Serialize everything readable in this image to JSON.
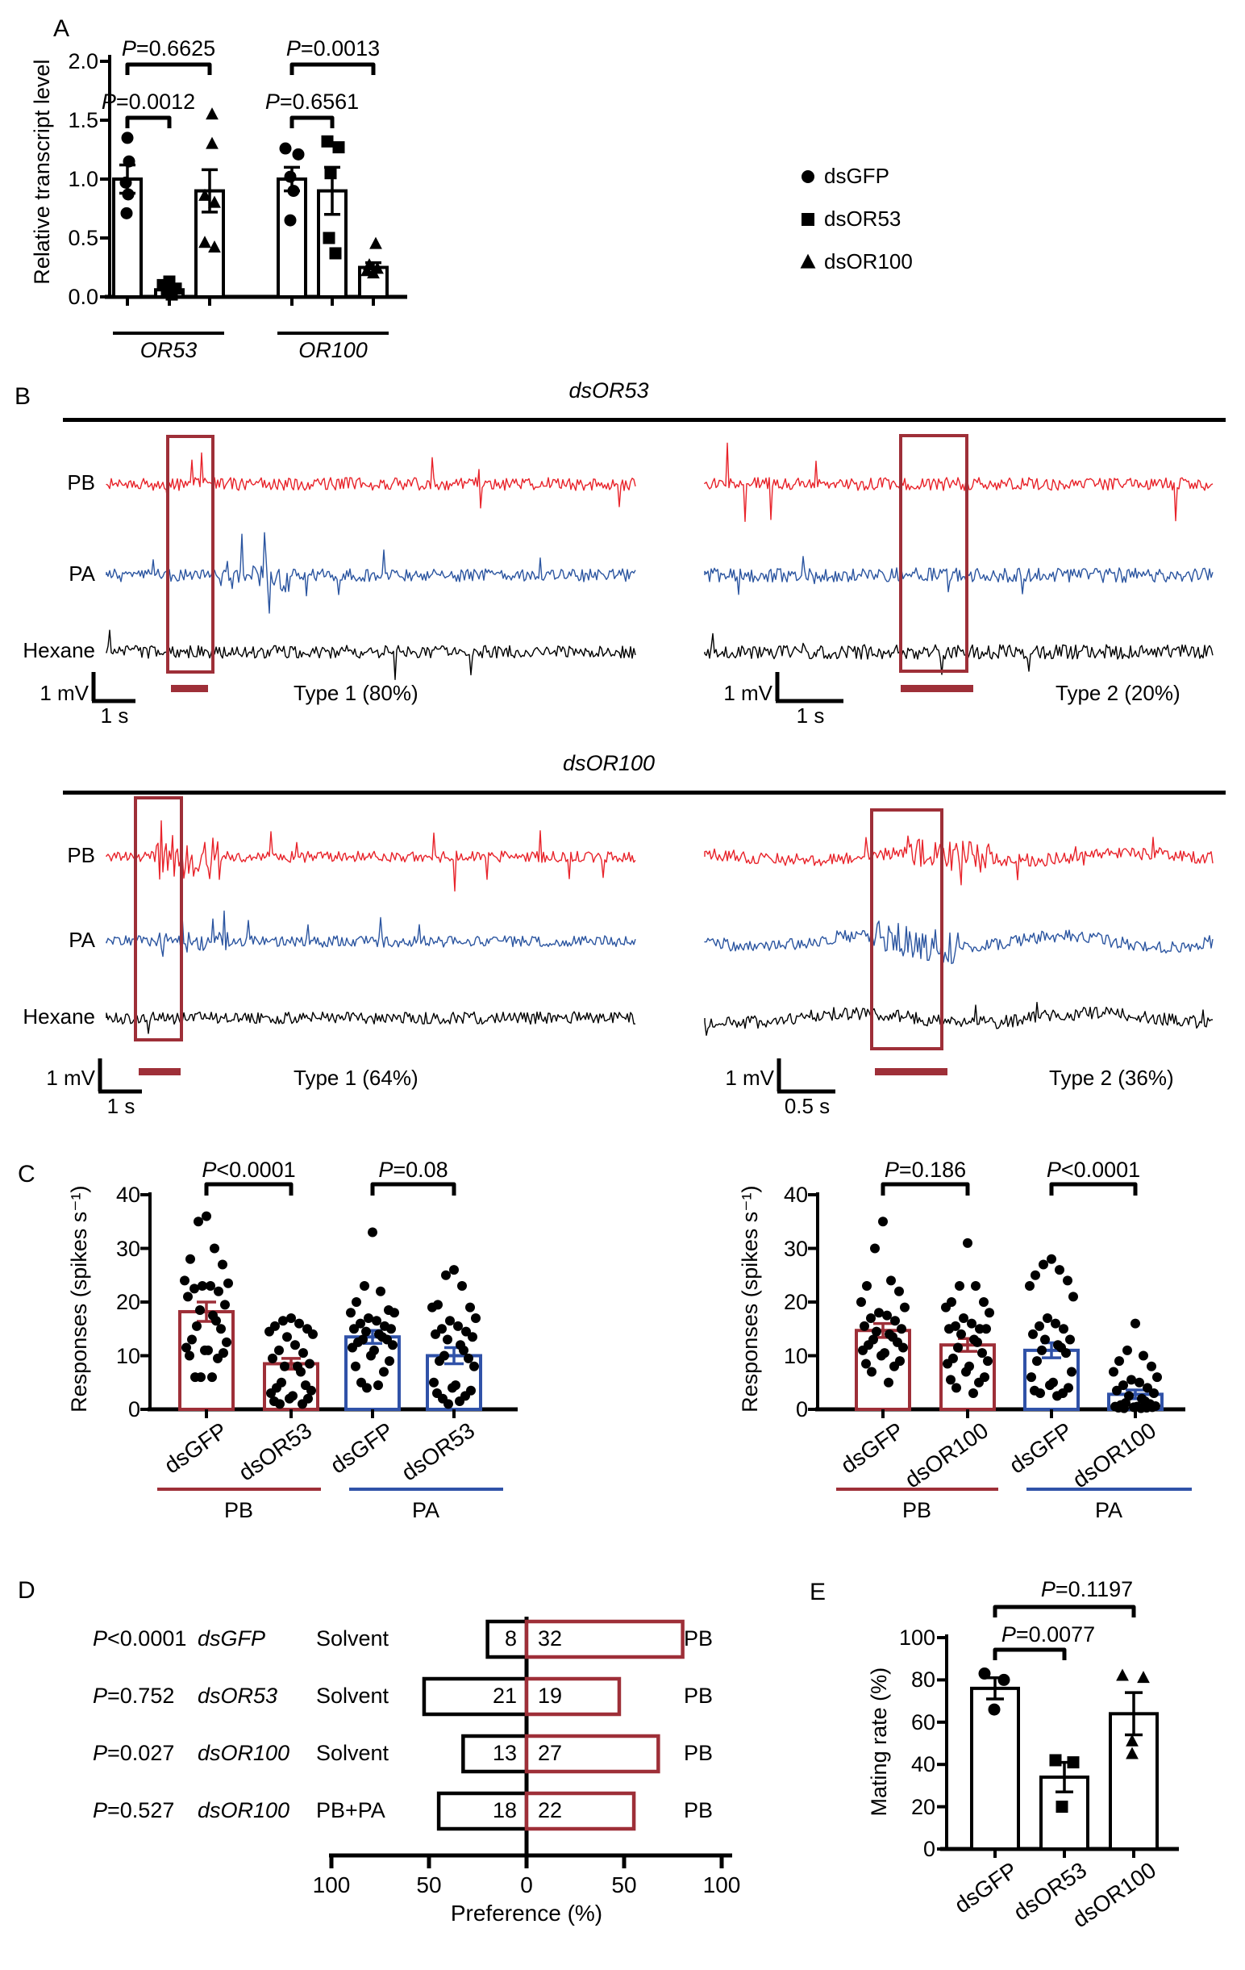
{
  "colors": {
    "trace_red": "#e8232a",
    "trace_blue": "#2b55a0",
    "trace_black": "#000000",
    "dark_red": "#9e2f38",
    "bar_blue": "#3052a8",
    "black": "#000000"
  },
  "panels": {
    "a_label": "A",
    "b_label": "B",
    "c_label": "C",
    "d_label": "D",
    "e_label": "E"
  },
  "chart_data": [
    {
      "id": "A",
      "type": "bar",
      "y_title": "Relative transcript level",
      "y_tick_labels": [
        "0.0",
        "0.5",
        "1.0",
        "1.5",
        "2.0"
      ],
      "ylim": [
        0,
        2.0
      ],
      "groups": [
        {
          "label": "OR53",
          "bars": [
            {
              "series": "dsGFP",
              "marker": "circle",
              "mean": 1.0,
              "sem": 0.12,
              "points": [
                1.35,
                1.15,
                0.97,
                0.87,
                0.71
              ]
            },
            {
              "series": "dsOR53",
              "marker": "square",
              "mean": 0.06,
              "sem": 0.04,
              "points": [
                0.13,
                0.1,
                0.07,
                0.05,
                0.02
              ]
            },
            {
              "series": "dsOR100",
              "marker": "triangle",
              "mean": 0.9,
              "sem": 0.18,
              "points": [
                1.55,
                1.3,
                0.86,
                0.8,
                0.46,
                0.42
              ]
            }
          ]
        },
        {
          "label": "OR100",
          "bars": [
            {
              "series": "dsGFP",
              "marker": "circle",
              "mean": 1.0,
              "sem": 0.1,
              "points": [
                1.26,
                1.21,
                1.02,
                0.9,
                0.65
              ]
            },
            {
              "series": "dsOR53",
              "marker": "square",
              "mean": 0.9,
              "sem": 0.2,
              "points": [
                1.32,
                1.27,
                1.05,
                0.5,
                0.37
              ]
            },
            {
              "series": "dsOR100",
              "marker": "triangle",
              "mean": 0.25,
              "sem": 0.04,
              "points": [
                0.45,
                0.27,
                0.24,
                0.22,
                0.2
              ]
            }
          ]
        }
      ],
      "comparisons": [
        {
          "text": "P=0.6625"
        },
        {
          "text": "P=0.0012"
        },
        {
          "text": "P=0.6561"
        },
        {
          "text": "P=0.0013"
        }
      ],
      "legend": [
        {
          "marker": "circle",
          "label": "dsGFP"
        },
        {
          "marker": "square",
          "label": "dsOR53"
        },
        {
          "marker": "triangle",
          "label": "dsOR100"
        }
      ]
    },
    {
      "id": "C_left",
      "type": "bar",
      "y_title": "Responses (spikes s⁻¹)",
      "y_ticks": [
        0,
        10,
        20,
        30,
        40
      ],
      "ylim": [
        0,
        40
      ],
      "comparisons": [
        "P<0.0001",
        "P=0.08"
      ],
      "group_labels": [
        "PB",
        "PA"
      ],
      "bars": [
        {
          "x_label": "dsGFP",
          "group": "PB",
          "mean": 18.2,
          "sem": 1.8,
          "points": [
            36,
            35,
            30,
            28,
            27,
            24,
            23.5,
            23,
            23,
            22.5,
            22,
            21,
            19.5,
            18.5,
            17.5,
            16.5,
            15.5,
            15,
            13,
            12.5,
            11.5,
            11,
            11,
            10.5,
            10,
            9.5,
            6,
            6,
            6
          ]
        },
        {
          "x_label": "dsOR53",
          "group": "PB",
          "mean": 8.5,
          "sem": 1.0,
          "points": [
            17,
            16.5,
            16,
            15.5,
            15,
            14.5,
            14,
            13.5,
            12,
            11,
            10.5,
            9.5,
            8.5,
            8,
            8,
            7,
            5,
            4.5,
            4,
            3.5,
            3,
            2.5,
            2,
            2,
            1.5,
            1,
            1
          ]
        },
        {
          "x_label": "dsGFP",
          "group": "PA",
          "mean": 13.5,
          "sem": 1.2,
          "points": [
            33,
            23,
            22,
            20,
            18.5,
            18,
            18,
            17,
            16.5,
            16,
            15.5,
            15,
            15,
            14.5,
            14,
            13.5,
            13,
            13,
            12.5,
            12,
            11.5,
            11,
            10,
            9,
            8,
            7,
            5,
            4.5,
            4
          ]
        },
        {
          "x_label": "dsOR53",
          "group": "PA",
          "mean": 10,
          "sem": 1.5,
          "points": [
            26,
            25,
            23,
            19.5,
            19,
            19,
            17,
            16.5,
            15.5,
            15,
            14.5,
            14,
            13.5,
            13,
            12,
            11,
            10,
            9.5,
            9,
            8,
            5,
            4.5,
            4,
            3.5,
            3,
            2.5,
            2,
            1.5,
            1
          ]
        }
      ]
    },
    {
      "id": "C_right",
      "type": "bar",
      "y_title": "Responses (spikes s⁻¹)",
      "y_ticks": [
        0,
        10,
        20,
        30,
        40
      ],
      "ylim": [
        0,
        40
      ],
      "comparisons": [
        "P=0.186",
        "P<0.0001"
      ],
      "group_labels": [
        "PB",
        "PA"
      ],
      "bars": [
        {
          "x_label": "dsGFP",
          "group": "PB",
          "mean": 14.7,
          "sem": 1.3,
          "points": [
            35,
            30,
            24,
            23,
            22,
            20,
            19,
            18,
            17.5,
            17,
            16.5,
            15.5,
            15,
            14.5,
            14,
            13.5,
            13,
            12.5,
            12,
            11.5,
            11,
            10.5,
            10,
            9,
            8.5,
            8,
            7,
            5
          ]
        },
        {
          "x_label": "dsOR100",
          "group": "PB",
          "mean": 12,
          "sem": 1.2,
          "points": [
            31,
            23,
            23,
            20,
            20,
            19,
            18,
            17,
            16,
            15.5,
            15,
            15,
            15,
            14,
            13,
            12.5,
            11.5,
            10.5,
            9.5,
            9,
            8.5,
            8,
            7,
            6,
            5.5,
            5,
            4,
            3
          ]
        },
        {
          "x_label": "dsGFP",
          "group": "PA",
          "mean": 11,
          "sem": 1.4,
          "points": [
            28,
            27,
            26,
            25,
            24,
            23,
            21,
            17,
            16,
            15.5,
            15,
            14,
            13,
            13,
            12,
            11.5,
            11,
            10.5,
            9,
            7,
            6,
            5,
            4.5,
            4,
            3.5,
            3,
            3,
            2.5
          ]
        },
        {
          "x_label": "dsOR100",
          "group": "PA",
          "mean": 2.8,
          "sem": 0.8,
          "points": [
            16,
            11,
            10,
            9,
            8,
            7,
            6,
            5.5,
            5,
            4.5,
            4,
            3.5,
            3,
            2.5,
            2,
            1.5,
            1.2,
            1,
            0.8,
            0.6,
            0.5,
            0.5,
            0.4,
            0.4,
            0.3,
            0.3,
            0.2,
            0.2
          ]
        }
      ]
    },
    {
      "id": "D",
      "type": "bar",
      "x_title": "Preference (%)",
      "x_tick_labels": [
        "100",
        "50",
        "0",
        "50",
        "100"
      ],
      "xlim": [
        -100,
        100
      ],
      "rows": [
        {
          "p": "P<0.0001",
          "treatment": "dsGFP",
          "left_label": "Solvent",
          "right_label": "PB",
          "left_value": 8,
          "right_value": 32
        },
        {
          "p": "P=0.752",
          "treatment": "dsOR53",
          "left_label": "Solvent",
          "right_label": "PB",
          "left_value": 21,
          "right_value": 19
        },
        {
          "p": "P=0.027",
          "treatment": "dsOR100",
          "left_label": "Solvent",
          "right_label": "PB",
          "left_value": 13,
          "right_value": 27
        },
        {
          "p": "P=0.527",
          "treatment": "dsOR100",
          "left_label": "PB+PA",
          "right_label": "PB",
          "left_value": 18,
          "right_value": 22
        }
      ]
    },
    {
      "id": "E",
      "type": "bar",
      "y_title": "Mating rate (%)",
      "y_ticks": [
        0,
        20,
        40,
        60,
        80,
        100
      ],
      "ylim": [
        0,
        100
      ],
      "comparisons": [
        "P=0.0077",
        "P=0.1197"
      ],
      "bars": [
        {
          "x_label": "dsGFP",
          "marker": "circle",
          "mean": 76,
          "sem": 5,
          "points": [
            83,
            80,
            66
          ]
        },
        {
          "x_label": "dsOR53",
          "marker": "square",
          "mean": 34,
          "sem": 7,
          "points": [
            42,
            41,
            20
          ]
        },
        {
          "x_label": "dsOR100",
          "marker": "triangle",
          "mean": 64,
          "sem": 10,
          "points": [
            82,
            81,
            51,
            45
          ]
        }
      ]
    }
  ],
  "panel_b": {
    "sections": [
      {
        "title": "dsOR53",
        "trace_labels": [
          "PB",
          "PA",
          "Hexane"
        ],
        "left": {
          "scale_v": "1 mV",
          "scale_h": "1 s",
          "type_label": "Type 1 (80%)"
        },
        "right": {
          "scale_v": "1 mV",
          "scale_h": "1 s",
          "type_label": "Type 2 (20%)"
        }
      },
      {
        "title": "dsOR100",
        "trace_labels": [
          "PB",
          "PA",
          "Hexane"
        ],
        "left": {
          "scale_v": "1 mV",
          "scale_h": "1 s",
          "type_label": "Type 1 (64%)"
        },
        "right": {
          "scale_v": "1 mV",
          "scale_h": "0.5 s",
          "type_label": "Type 2 (36%)"
        }
      }
    ]
  }
}
